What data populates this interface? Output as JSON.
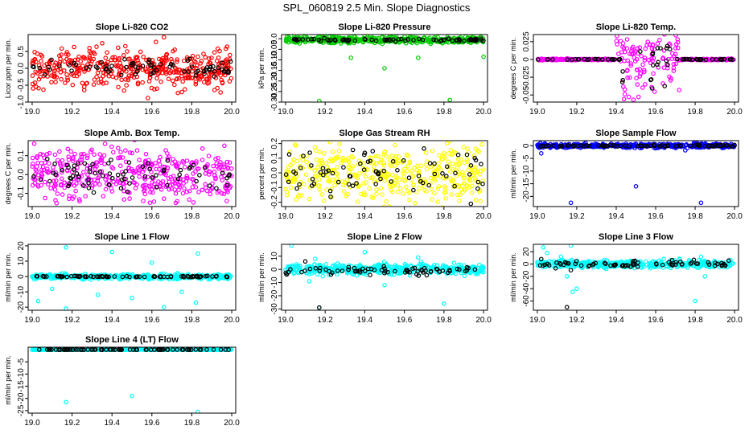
{
  "figure_title": "SPL_060819  2.5 Min. Slope Diagnostics",
  "chart_data": [
    {
      "type": "scatter",
      "title": "Slope Li-820 CO2",
      "ylabel": "Licor ppm per min.",
      "xlim": [
        18.98,
        20.02
      ],
      "ylim": [
        -1.0,
        1.0
      ],
      "xticks": [
        19.0,
        19.2,
        19.4,
        19.6,
        19.8,
        20.0
      ],
      "yticks": [
        -1.0,
        -0.5,
        0.0,
        0.5
      ],
      "ytick_labels": [
        "-1.0",
        "-0.5",
        "0.0",
        "0.5"
      ],
      "series": [
        {
          "name": "all",
          "color": "#ff0000",
          "center": 0.0,
          "spread": 0.28,
          "outliers": [
            [
              19.66,
              0.92
            ],
            [
              19.62,
              0.78
            ],
            [
              19.58,
              -0.88
            ],
            [
              19.73,
              -0.73
            ],
            [
              19.02,
              -0.55
            ],
            [
              19.21,
              0.63
            ],
            [
              19.46,
              -0.66
            ],
            [
              19.93,
              0.58
            ]
          ]
        },
        {
          "name": "subset",
          "color": "#000000",
          "center": 0.0,
          "spread": 0.12,
          "outliers": []
        }
      ]
    },
    {
      "type": "scatter",
      "title": "Slope Li-820 Pressure",
      "ylabel": "kPa per min.",
      "xlim": [
        18.98,
        20.02
      ],
      "ylim": [
        -0.3,
        0.02
      ],
      "xticks": [
        19.0,
        19.2,
        19.4,
        19.6,
        19.8,
        20.0
      ],
      "yticks": [
        -0.3,
        -0.25,
        -0.2,
        -0.15,
        -0.1,
        -0.05,
        0.0
      ],
      "ytick_labels": [
        "-0.30",
        "-0.25",
        "-0.20",
        "-0.15",
        "-0.10",
        "-0.05",
        "0.0"
      ],
      "series": [
        {
          "name": "all",
          "color": "#00cc00",
          "center": -0.005,
          "spread": 0.008,
          "outliers": [
            [
              19.17,
              -0.295
            ],
            [
              19.33,
              -0.09
            ],
            [
              19.5,
              -0.14
            ],
            [
              19.67,
              -0.09
            ],
            [
              19.83,
              -0.29
            ],
            [
              20.0,
              -0.085
            ]
          ]
        },
        {
          "name": "subset",
          "color": "#000000",
          "center": -0.005,
          "spread": 0.004,
          "outliers": []
        }
      ]
    },
    {
      "type": "scatter",
      "title": "Slope Li-820 Temp.",
      "ylabel": "degrees C per min.",
      "xlim": [
        18.98,
        20.02
      ],
      "ylim": [
        -0.06,
        0.035
      ],
      "xticks": [
        19.0,
        19.2,
        19.4,
        19.6,
        19.8,
        20.0
      ],
      "yticks": [
        -0.05,
        -0.025,
        0.0,
        0.025
      ],
      "ytick_labels": [
        "-0.05",
        "-0.025",
        "0",
        "0.025"
      ],
      "series": [
        {
          "name": "all",
          "color": "#ff00ff",
          "center": 0.0,
          "spread": 0.0005,
          "burst": [
            19.4,
            19.72,
            0.04
          ],
          "outliers": []
        },
        {
          "name": "subset",
          "color": "#000000",
          "center": 0.0,
          "spread": 0.0003,
          "burst": [
            19.42,
            19.68,
            0.03
          ],
          "outliers": []
        }
      ]
    },
    {
      "type": "scatter",
      "title": "Slope Amb. Box Temp.",
      "ylabel": "degrees C per min.",
      "xlim": [
        18.98,
        20.02
      ],
      "ylim": [
        -0.17,
        0.18
      ],
      "xticks": [
        19.0,
        19.2,
        19.4,
        19.6,
        19.8,
        20.0
      ],
      "yticks": [
        -0.1,
        0.0,
        0.1
      ],
      "ytick_labels": [
        "-0.1",
        "0.0",
        "0.1"
      ],
      "series": [
        {
          "name": "all",
          "color": "#ff00ff",
          "center": 0.0,
          "spread": 0.07,
          "outliers": []
        },
        {
          "name": "subset",
          "color": "#000000",
          "center": 0.0,
          "spread": 0.045,
          "outliers": []
        }
      ]
    },
    {
      "type": "scatter",
      "title": "Slope Gas Stream RH",
      "ylabel": "percent per min.",
      "xlim": [
        18.98,
        20.02
      ],
      "ylim": [
        -0.23,
        0.22
      ],
      "xticks": [
        19.0,
        19.2,
        19.4,
        19.6,
        19.8,
        20.0
      ],
      "yticks": [
        -0.2,
        -0.1,
        0.0,
        0.1,
        0.2
      ],
      "ytick_labels": [
        "-0.2",
        "-0.1",
        "0.0",
        "0.1",
        "0.2"
      ],
      "series": [
        {
          "name": "all",
          "color": "#ffff00",
          "center": 0.0,
          "spread": 0.1,
          "outliers": []
        },
        {
          "name": "subset",
          "color": "#000000",
          "center": 0.0,
          "spread": 0.07,
          "outliers": []
        }
      ]
    },
    {
      "type": "scatter",
      "title": "Slope Sample Flow",
      "ylabel": "ml/min per min.",
      "xlim": [
        18.98,
        20.02
      ],
      "ylim": [
        -24,
        2
      ],
      "xticks": [
        19.0,
        19.2,
        19.4,
        19.6,
        19.8,
        20.0
      ],
      "yticks": [
        -20,
        -15,
        -10,
        -5,
        0
      ],
      "ytick_labels": [
        "-20",
        "-15",
        "-10",
        "-5",
        "0"
      ],
      "series": [
        {
          "name": "all",
          "color": "#0000ff",
          "center": 0.0,
          "spread": 0.4,
          "outliers": [
            [
              19.17,
              -22.5
            ],
            [
              19.5,
              -16
            ],
            [
              19.83,
              -22.5
            ],
            [
              19.02,
              -3
            ],
            [
              19.75,
              -1.8
            ]
          ]
        },
        {
          "name": "subset",
          "color": "#000000",
          "center": 0.0,
          "spread": 0.2,
          "outliers": []
        }
      ]
    },
    {
      "type": "scatter",
      "title": "Slope Line 1 Flow",
      "ylabel": "ml/min per min.",
      "xlim": [
        18.98,
        20.02
      ],
      "ylim": [
        -22,
        21
      ],
      "xticks": [
        19.0,
        19.2,
        19.4,
        19.6,
        19.8,
        20.0
      ],
      "yticks": [
        -20,
        -10,
        0,
        10,
        20
      ],
      "ytick_labels": [
        "-20",
        "-10",
        "0",
        "10",
        "20"
      ],
      "series": [
        {
          "name": "all",
          "color": "#00ffff",
          "center": 0.0,
          "spread": 0.8,
          "outliers": [
            [
              19.03,
              -16
            ],
            [
              19.17,
              -21
            ],
            [
              19.17,
              19
            ],
            [
              19.33,
              -12
            ],
            [
              19.4,
              16
            ],
            [
              19.5,
              -14
            ],
            [
              19.66,
              -20
            ],
            [
              19.82,
              -17
            ],
            [
              19.83,
              15
            ],
            [
              19.1,
              -8
            ],
            [
              19.6,
              9
            ],
            [
              19.75,
              -10
            ]
          ]
        },
        {
          "name": "subset",
          "color": "#000000",
          "center": 0.0,
          "spread": 0.2,
          "outliers": []
        }
      ]
    },
    {
      "type": "scatter",
      "title": "Slope Line 2 Flow",
      "ylabel": "ml/min per min.",
      "xlim": [
        18.98,
        20.02
      ],
      "ylim": [
        -31,
        19
      ],
      "xticks": [
        19.0,
        19.2,
        19.4,
        19.6,
        19.8,
        20.0
      ],
      "yticks": [
        -30,
        -20,
        -10,
        0,
        10
      ],
      "ytick_labels": [
        "-30",
        "-20",
        "-10",
        "0",
        "10"
      ],
      "series": [
        {
          "name": "all",
          "color": "#00ffff",
          "center": 0.0,
          "spread": 2.0,
          "outliers": [
            [
              19.03,
              18
            ],
            [
              19.17,
              -29
            ],
            [
              19.15,
              8
            ],
            [
              19.4,
              13
            ],
            [
              19.5,
              -12
            ],
            [
              19.67,
              9
            ],
            [
              19.8,
              -26
            ],
            [
              19.12,
              -9
            ]
          ]
        },
        {
          "name": "subset",
          "color": "#000000",
          "center": -1.0,
          "spread": 1.5,
          "outliers": [
            [
              19.17,
              -29
            ],
            [
              19.1,
              6
            ]
          ]
        }
      ]
    },
    {
      "type": "scatter",
      "title": "Slope Line 3 Flow",
      "ylabel": "ml/min per min.",
      "xlim": [
        18.98,
        20.02
      ],
      "ylim": [
        -75,
        32
      ],
      "xticks": [
        19.0,
        19.2,
        19.4,
        19.6,
        19.8,
        20.0
      ],
      "yticks": [
        -60,
        -40,
        -20,
        0,
        20
      ],
      "ytick_labels": [
        "-60",
        "-40",
        "-20",
        "0",
        "20"
      ],
      "series": [
        {
          "name": "all",
          "color": "#00ffff",
          "center": 0.0,
          "spread": 3.0,
          "outliers": [
            [
              19.03,
              27
            ],
            [
              19.05,
              18
            ],
            [
              19.17,
              30
            ],
            [
              19.15,
              -20
            ],
            [
              19.18,
              -45
            ],
            [
              19.2,
              -40
            ],
            [
              19.12,
              12
            ],
            [
              19.8,
              -60
            ],
            [
              19.83,
              12
            ],
            [
              19.85,
              -20
            ]
          ]
        },
        {
          "name": "subset",
          "color": "#000000",
          "center": 0.0,
          "spread": 3.0,
          "outliers": [
            [
              19.15,
              -70
            ],
            [
              19.02,
              8
            ],
            [
              19.17,
              -10
            ]
          ]
        }
      ]
    },
    {
      "type": "scatter",
      "title": "Slope Line 4 (LT) Flow",
      "ylabel": "ml/min per min.",
      "xlim": [
        18.98,
        20.02
      ],
      "ylim": [
        -26,
        1
      ],
      "xticks": [
        19.0,
        19.2,
        19.4,
        19.6,
        19.8,
        20.0
      ],
      "yticks": [
        -25,
        -20,
        -15,
        -10,
        -5
      ],
      "ytick_labels": [
        "-25",
        "-20",
        "-15",
        "-10",
        "-5"
      ],
      "series": [
        {
          "name": "all",
          "color": "#00ffff",
          "center": 0.0,
          "spread": 0.05,
          "outliers": [
            [
              19.17,
              -21.5
            ],
            [
              19.5,
              -19
            ],
            [
              19.83,
              -25.5
            ]
          ]
        },
        {
          "name": "subset",
          "color": "#000000",
          "center": 0.0,
          "spread": 0.02,
          "outliers": []
        }
      ]
    }
  ]
}
